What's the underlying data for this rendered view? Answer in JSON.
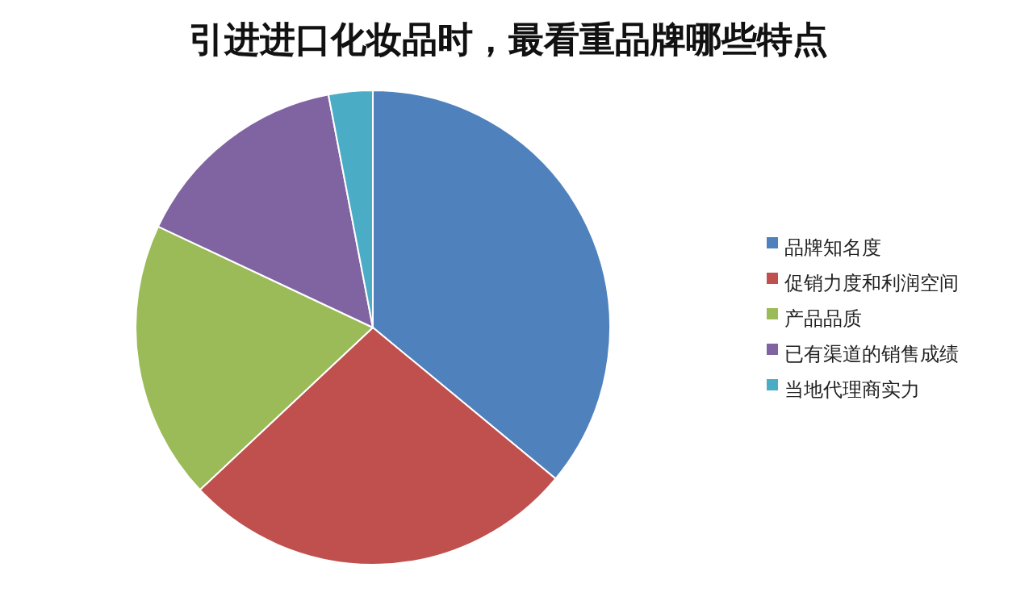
{
  "chart_data": {
    "type": "pie",
    "title": "引进进口化妆品时，最看重品牌哪些特点",
    "categories": [
      "品牌知名度",
      "促销力度和利润空间",
      "产品品质",
      "已有渠道的销售成绩",
      "当地代理商实力"
    ],
    "values": [
      36,
      27,
      19,
      15,
      3
    ],
    "colors": [
      "#4f81bd",
      "#c0504d",
      "#9bbb59",
      "#8064a2",
      "#4bacc6"
    ],
    "legend": "right"
  }
}
